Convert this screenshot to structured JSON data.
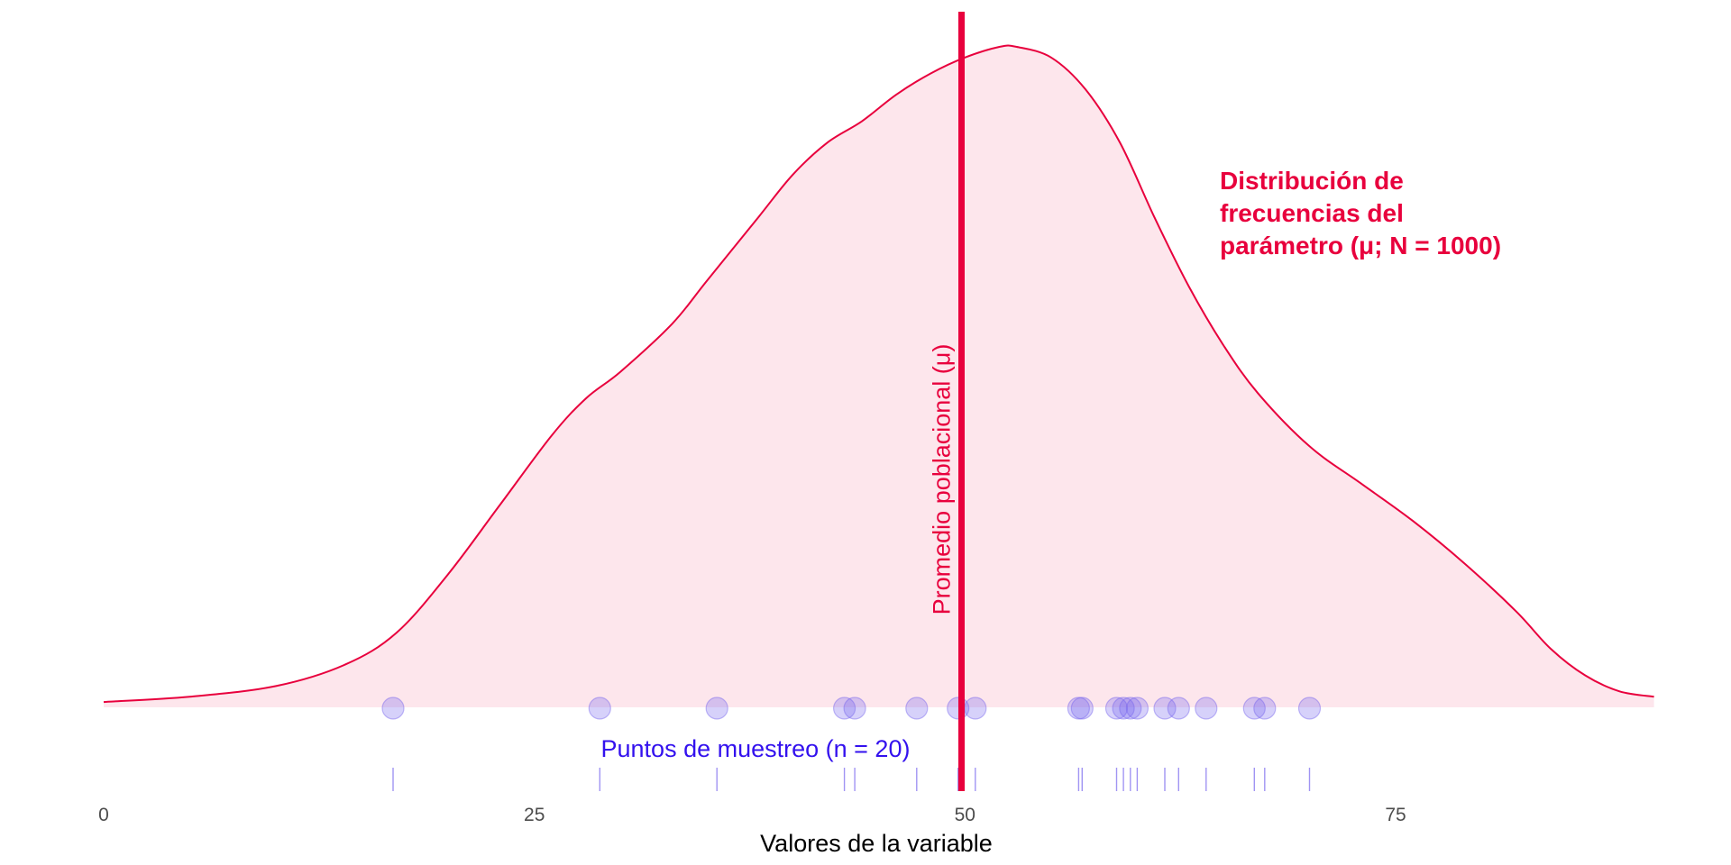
{
  "colors": {
    "population": "#e8003d",
    "population_fill": "#fde6ec",
    "sample": "#3311ee",
    "sample_point": "#7766ee"
  },
  "chart_data": {
    "type": "area",
    "xlabel": "Valores de la variable",
    "ylabel": "",
    "xlim": [
      0,
      90
    ],
    "x_ticks": [
      0,
      25,
      50,
      75
    ],
    "grid": false,
    "density": {
      "x": [
        0,
        5,
        10,
        14,
        17,
        20,
        23,
        26,
        28,
        30,
        33,
        35,
        38,
        40,
        42,
        44,
        46,
        48,
        50,
        52,
        53,
        55,
        57,
        59,
        61,
        63,
        65,
        67,
        70,
        73,
        76,
        79,
        82,
        84,
        86,
        88,
        90
      ],
      "y": [
        0.001,
        0.002,
        0.004,
        0.008,
        0.014,
        0.025,
        0.038,
        0.051,
        0.058,
        0.063,
        0.072,
        0.08,
        0.092,
        0.1,
        0.106,
        0.11,
        0.115,
        0.119,
        0.122,
        0.124,
        0.124,
        0.122,
        0.116,
        0.106,
        0.092,
        0.079,
        0.068,
        0.059,
        0.049,
        0.042,
        0.035,
        0.027,
        0.018,
        0.011,
        0.006,
        0.003,
        0.002
      ]
    },
    "mu": 49.8,
    "mu_label": "Promedio poblacional (μ)",
    "distribution_label": [
      "Distribución de",
      "frecuencias del",
      "parámetro (μ; N = 1000)"
    ],
    "sample_label": "Puntos de muestreo (n = 20)",
    "sample_points": [
      16.8,
      28.8,
      35.6,
      43.0,
      43.6,
      47.2,
      49.6,
      50.6,
      56.6,
      56.8,
      58.8,
      59.2,
      59.6,
      60.0,
      61.6,
      62.4,
      64.0,
      66.8,
      67.4,
      70.0
    ]
  }
}
